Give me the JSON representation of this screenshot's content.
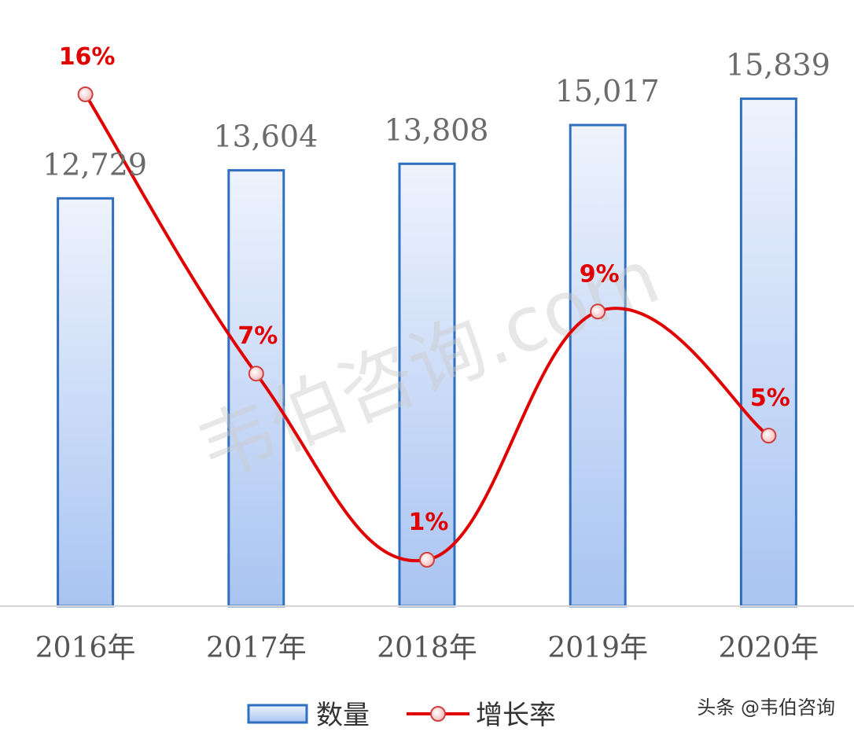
{
  "chart_data": {
    "type": "bar+line",
    "categories": [
      "2016年",
      "2017年",
      "2018年",
      "2019年",
      "2020年"
    ],
    "series": [
      {
        "name": "数量",
        "type": "bar",
        "values": [
          12729,
          13604,
          13808,
          15017,
          15839
        ],
        "value_labels": [
          "12,729",
          "13,604",
          "13,808",
          "15,017",
          "15,839"
        ],
        "color": "#2e6fc0"
      },
      {
        "name": "增长率",
        "type": "line",
        "values": [
          16,
          7,
          1,
          9,
          5
        ],
        "value_labels": [
          "16%",
          "7%",
          "1%",
          "9%",
          "5%"
        ],
        "color": "#e00000"
      }
    ],
    "legend_position": "bottom",
    "grid": false
  },
  "watermark": "韦伯咨询.com",
  "credit": "头条 @韦伯咨询"
}
